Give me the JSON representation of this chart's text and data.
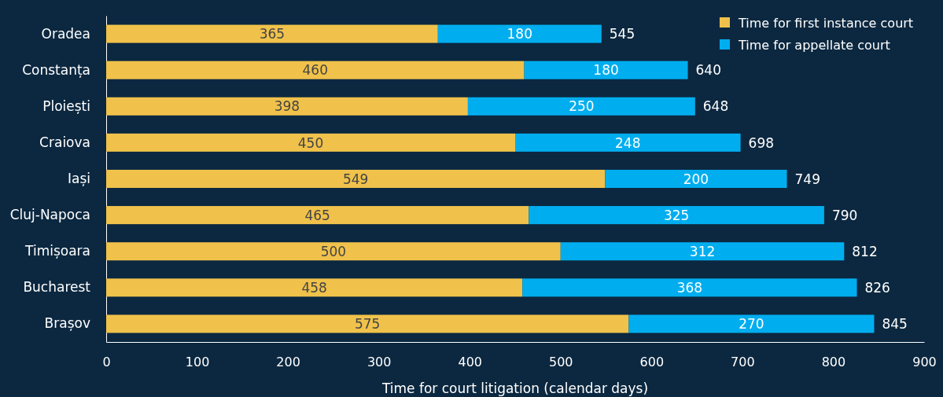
{
  "chart_data": {
    "type": "bar",
    "orientation": "horizontal",
    "stacked": true,
    "xlabel": "Time for court litigation (calendar days)",
    "categories": [
      "Oradea",
      "Constanța",
      "Ploiești",
      "Craiova",
      "Iași",
      "Cluj-Napoca",
      "Timișoara",
      "Bucharest",
      "Brașov"
    ],
    "series": [
      {
        "name": "Time for first instance court",
        "color": "#f0c24b",
        "values": [
          365,
          460,
          398,
          450,
          549,
          465,
          500,
          458,
          575
        ]
      },
      {
        "name": "Time for appellate court",
        "color": "#00aeef",
        "values": [
          180,
          180,
          250,
          248,
          200,
          325,
          312,
          368,
          270
        ]
      }
    ],
    "totals": [
      "545",
      "640",
      "648",
      "698",
      "749",
      "790",
      "812",
      "826",
      "845"
    ],
    "xlim": [
      0,
      900
    ],
    "xticks": [
      0,
      100,
      200,
      300,
      400,
      500,
      600,
      700,
      800,
      900
    ],
    "data_labels": true,
    "legend": "top right",
    "grid": false
  }
}
